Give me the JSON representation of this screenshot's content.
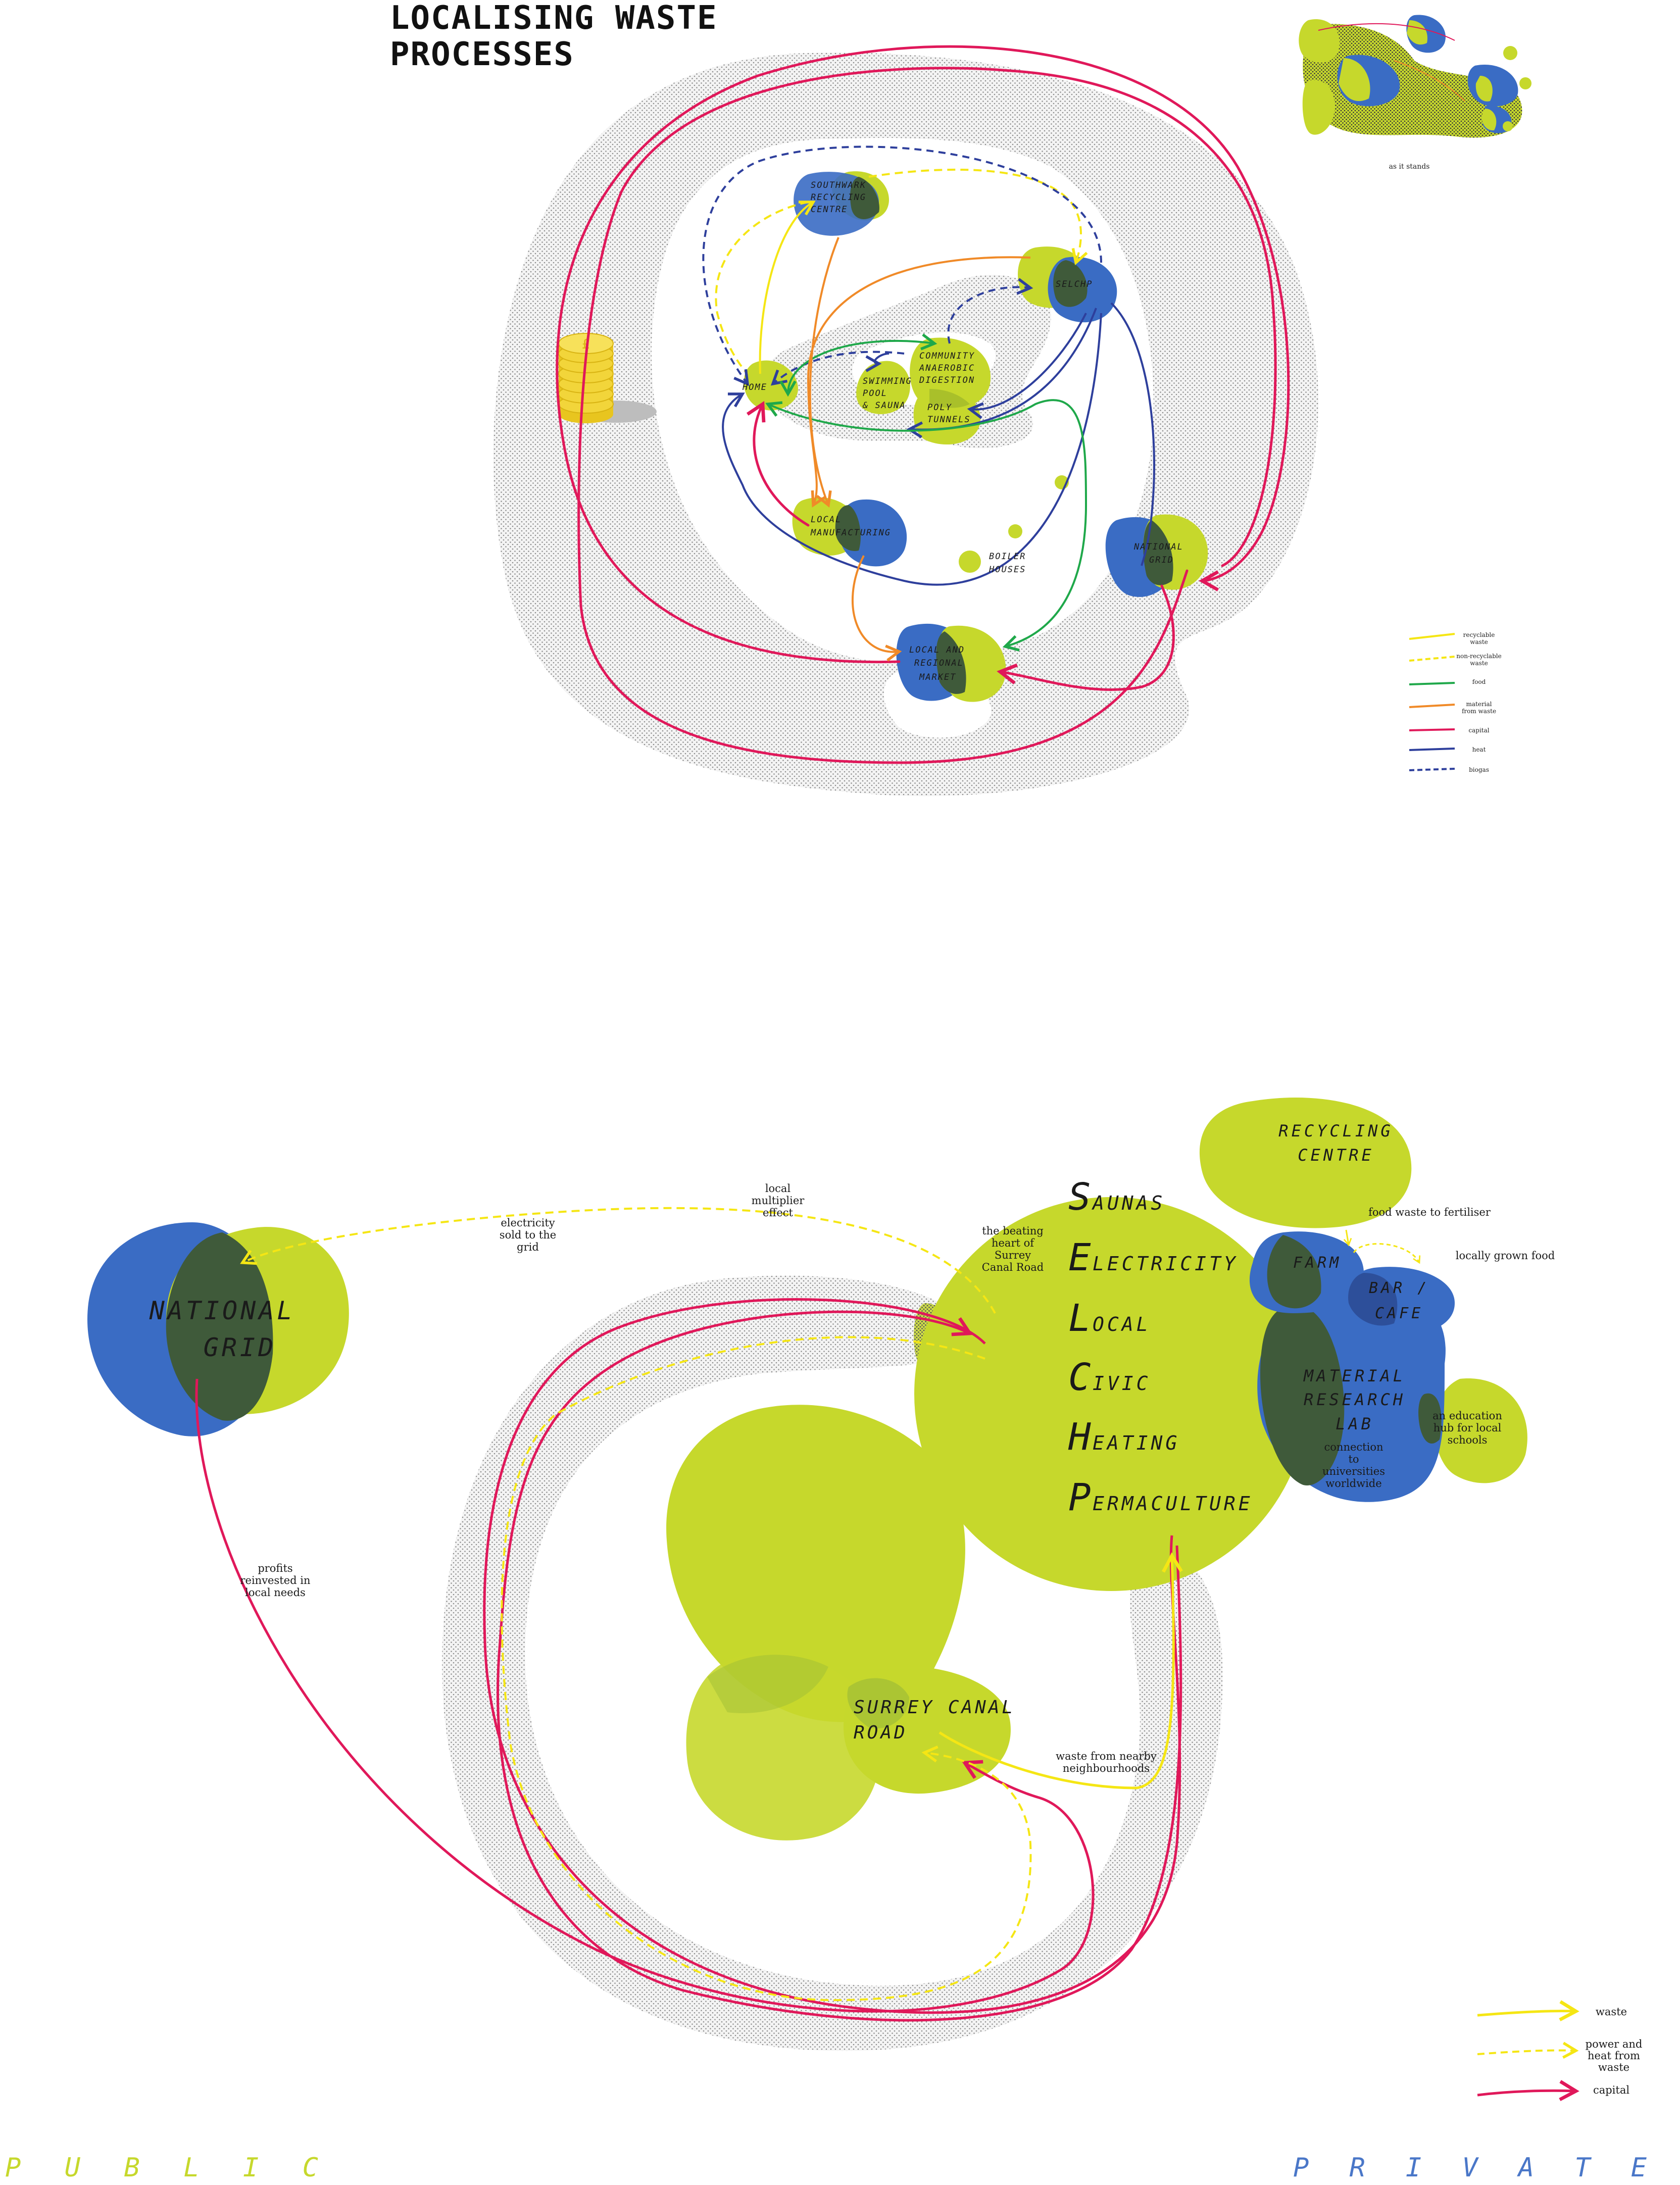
{
  "title": {
    "line1": "LOCALISING WASTE",
    "line2": "PROCESSES"
  },
  "top_diagram": {
    "nodes": {
      "southwark": [
        "SOUTHWARK",
        "RECYCLING",
        "CENTRE"
      ],
      "selchp": "SELCHP",
      "home": "HOME",
      "swimming": [
        "SWIMMING",
        "POOL",
        "& SAUNA"
      ],
      "community": [
        "COMMUNITY",
        "ANAEROBIC",
        "DIGESTION"
      ],
      "poly": [
        "POLY",
        "TUNNELS"
      ],
      "local_manufacturing": [
        "LOCAL",
        "MANUFACTURING"
      ],
      "boiler": [
        "BOILER",
        "HOUSES"
      ],
      "national_grid": [
        "NATIONAL",
        "GRID"
      ],
      "market": [
        "LOCAL AND",
        "REGIONAL",
        "MARKET"
      ]
    },
    "legend": [
      {
        "label": "recyclable\nwaste",
        "color": "#f5e614",
        "style": "solid"
      },
      {
        "label": "non-recyclable\nwaste",
        "color": "#f5e614",
        "style": "dashed"
      },
      {
        "label": "food",
        "color": "#1fa84a",
        "style": "solid"
      },
      {
        "label": "material\nfrom waste",
        "color": "#f08a28",
        "style": "solid"
      },
      {
        "label": "capital",
        "color": "#e0185a",
        "style": "solid"
      },
      {
        "label": "heat",
        "color": "#2e3f9c",
        "style": "solid"
      },
      {
        "label": "biogas",
        "color": "#2e3f9c",
        "style": "dashed"
      }
    ],
    "inset_caption": "as it stands"
  },
  "bottom_diagram": {
    "national_grid": [
      "NATIONAL",
      "GRID"
    ],
    "recycling_centre": [
      "RECYCLING",
      "CENTRE"
    ],
    "selchp_acronym": [
      {
        "initial": "S",
        "rest": "AUNAS"
      },
      {
        "initial": "E",
        "rest": "LECTRICITY"
      },
      {
        "initial": "L",
        "rest": "OCAL"
      },
      {
        "initial": "C",
        "rest": "IVIC"
      },
      {
        "initial": "H",
        "rest": "EATING"
      },
      {
        "initial": "P",
        "rest": "ERMACULTURE"
      }
    ],
    "farm": "FARM",
    "bar_cafe": [
      "BAR /",
      "CAFE"
    ],
    "material_lab": [
      "MATERIAL",
      "RESEARCH",
      "LAB"
    ],
    "surrey_canal": [
      "SURREY CANAL",
      "ROAD"
    ],
    "annotations": {
      "local_multiplier": [
        "local",
        "multiplier",
        "effect"
      ],
      "electricity_sold": [
        "electricity",
        "sold to the",
        "grid"
      ],
      "beating_heart": [
        "the beating",
        "heart of",
        "Surrey",
        "Canal Road"
      ],
      "food_waste": "food waste to fertiliser",
      "locally_grown": "locally grown food",
      "connection": [
        "connection",
        "to",
        "universities",
        "worldwide"
      ],
      "education": [
        "an education",
        "hub for local",
        "schools"
      ],
      "profits": [
        "profits",
        "reinvested in",
        "local needs"
      ],
      "waste_nearby": [
        "waste from nearby",
        "neighbourhoods"
      ]
    },
    "legend": [
      {
        "label": "waste",
        "color": "#f5e614",
        "style": "solid"
      },
      {
        "label": "power and\nheat from\nwaste",
        "color": "#f5e614",
        "style": "dashed"
      },
      {
        "label": "capital",
        "color": "#e0185a",
        "style": "solid"
      }
    ]
  },
  "footer": {
    "left": [
      "P",
      "U",
      "B",
      "L",
      "I",
      "C"
    ],
    "right": [
      "P",
      "R",
      "I",
      "V",
      "A",
      "T",
      "E"
    ]
  },
  "colors": {
    "lime": "#c6d82c",
    "blue": "#3a6cc4",
    "dark_overlap": "#3f5a3a",
    "pink": "#e0185a",
    "yellow": "#f5e614",
    "green": "#1fa84a",
    "orange": "#f08a28",
    "navy": "#2e3f9c"
  }
}
